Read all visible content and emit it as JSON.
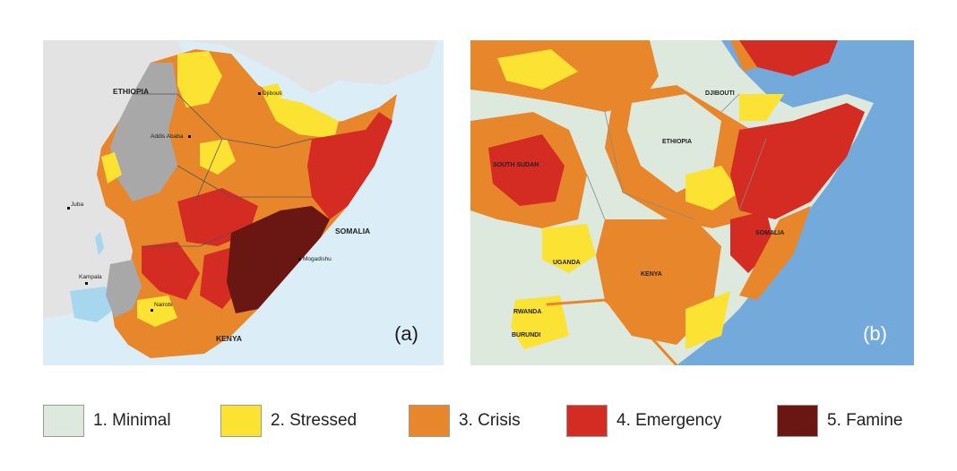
{
  "colors": {
    "minimal": "#dde9dc",
    "stressed": "#fbe233",
    "crisis": "#e8862b",
    "emergency": "#d42b22",
    "famine": "#6a1612",
    "land_gray": "#a8a8a8",
    "land_light": "#e3e3e3",
    "water_a": "#dbeef7",
    "water_b": "#74aadb"
  },
  "map_a": {
    "panel_label": "(a)",
    "places": {
      "ethiopia": "ETHIOPIA",
      "djibouti": "Djibouti",
      "addis": "Addis Ababa",
      "juba": "Juba",
      "somalia": "SOMALIA",
      "kampala": "Kampala",
      "mogadishu": "Mogadishu",
      "nairobi": "Nairobi",
      "kenya": "KENYA"
    }
  },
  "map_b": {
    "panel_label": "(b)",
    "places": {
      "djibouti": "DJIBOUTI",
      "ethiopia": "ETHIOPIA",
      "south_sudan": "SOUTH SUDAN",
      "somalia": "SOMALIA",
      "uganda": "UGANDA",
      "kenya": "KENYA",
      "rwanda": "RWANDA",
      "burundi": "BURUNDI"
    }
  },
  "legend": [
    {
      "label": "1. Minimal",
      "color": "#dde9dc",
      "icon": "minimal-swatch"
    },
    {
      "label": "2. Stressed",
      "color": "#fbe233",
      "icon": "stressed-swatch"
    },
    {
      "label": "3. Crisis",
      "color": "#e8862b",
      "icon": "crisis-swatch"
    },
    {
      "label": "4. Emergency",
      "color": "#d42b22",
      "icon": "emergency-swatch"
    },
    {
      "label": "5. Famine",
      "color": "#6a1612",
      "icon": "famine-swatch"
    }
  ]
}
